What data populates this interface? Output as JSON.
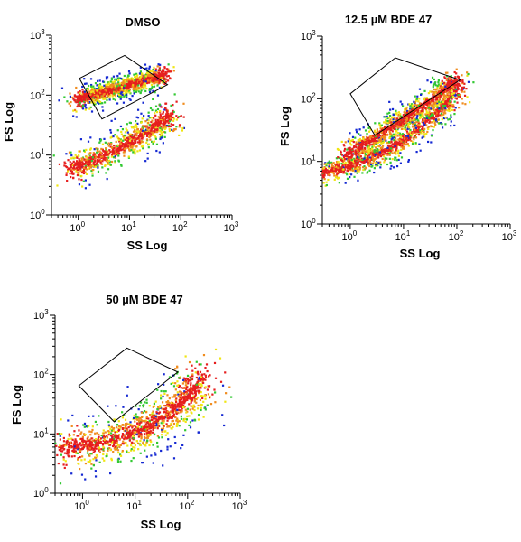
{
  "chart_data": [
    {
      "type": "scatter",
      "title": "DMSO",
      "xlabel": "SS Log",
      "ylabel": "FS Log",
      "xscale": "log",
      "yscale": "log",
      "xlim": [
        0.3,
        1000
      ],
      "ylim": [
        1,
        1000
      ],
      "x_ticks": [
        {
          "base": "10",
          "exp": "0"
        },
        {
          "base": "10",
          "exp": "1"
        },
        {
          "base": "10",
          "exp": "2"
        },
        {
          "base": "10",
          "exp": "3"
        }
      ],
      "y_ticks": [
        {
          "base": "10",
          "exp": "0"
        },
        {
          "base": "10",
          "exp": "1"
        },
        {
          "base": "10",
          "exp": "2"
        },
        {
          "base": "10",
          "exp": "3"
        }
      ],
      "display": "density",
      "density_colors": [
        "#1428d2",
        "#32c832",
        "#f0e614",
        "#f08c1e",
        "#e61e1e"
      ],
      "gate": [
        [
          1.05,
          190
        ],
        [
          8.0,
          460
        ],
        [
          55,
          150
        ],
        [
          2.9,
          40
        ]
      ],
      "populations": [
        {
          "x": [
            0.6,
            12,
            65
          ],
          "y": [
            5.5,
            14,
            50
          ],
          "width": 0.22,
          "density": 0.7
        },
        {
          "x": [
            1.0,
            6,
            50
          ],
          "y": [
            85,
            130,
            220
          ],
          "width": 0.14,
          "density": 1.0
        }
      ]
    },
    {
      "type": "scatter",
      "title": "12.5 µM BDE 47",
      "xlabel": "SS Log",
      "ylabel": "FS Log",
      "xscale": "log",
      "yscale": "log",
      "xlim": [
        0.3,
        1000
      ],
      "ylim": [
        1,
        1000
      ],
      "x_ticks": [
        {
          "base": "10",
          "exp": "0"
        },
        {
          "base": "10",
          "exp": "1"
        },
        {
          "base": "10",
          "exp": "2"
        },
        {
          "base": "10",
          "exp": "3"
        }
      ],
      "y_ticks": [
        {
          "base": "10",
          "exp": "0"
        },
        {
          "base": "10",
          "exp": "1"
        },
        {
          "base": "10",
          "exp": "2"
        },
        {
          "base": "10",
          "exp": "3"
        }
      ],
      "display": "density",
      "density_colors": [
        "#1428d2",
        "#32c832",
        "#f0e614",
        "#f08c1e",
        "#e61e1e"
      ],
      "gate": [
        [
          1.0,
          120
        ],
        [
          7.0,
          450
        ],
        [
          115,
          200
        ],
        [
          2.9,
          26
        ]
      ],
      "populations": [
        {
          "x": [
            0.15,
            8,
            100
          ],
          "y": [
            6,
            9,
            140
          ],
          "width": 0.18,
          "density": 0.9
        },
        {
          "x": [
            0.8,
            15,
            100
          ],
          "y": [
            12,
            55,
            190
          ],
          "width": 0.16,
          "density": 0.85
        }
      ]
    },
    {
      "type": "scatter",
      "title": "50 µM BDE 47",
      "xlabel": "SS Log",
      "ylabel": "FS Log",
      "xscale": "log",
      "yscale": "log",
      "xlim": [
        0.3,
        1000
      ],
      "ylim": [
        1,
        1000
      ],
      "x_ticks": [
        {
          "base": "10",
          "exp": "0"
        },
        {
          "base": "10",
          "exp": "1"
        },
        {
          "base": "10",
          "exp": "2"
        },
        {
          "base": "10",
          "exp": "3"
        }
      ],
      "y_ticks": [
        {
          "base": "10",
          "exp": "0"
        },
        {
          "base": "10",
          "exp": "1"
        },
        {
          "base": "10",
          "exp": "2"
        },
        {
          "base": "10",
          "exp": "3"
        }
      ],
      "display": "density",
      "density_colors": [
        "#1428d2",
        "#32c832",
        "#f0e614",
        "#f08c1e",
        "#e61e1e"
      ],
      "gate": [
        [
          0.85,
          65
        ],
        [
          7.0,
          280
        ],
        [
          65,
          110
        ],
        [
          4.0,
          16
        ]
      ],
      "populations": [
        {
          "x": [
            0.4,
            25,
            200
          ],
          "y": [
            6,
            7,
            90
          ],
          "width": 0.33,
          "density": 1.0
        }
      ]
    }
  ]
}
